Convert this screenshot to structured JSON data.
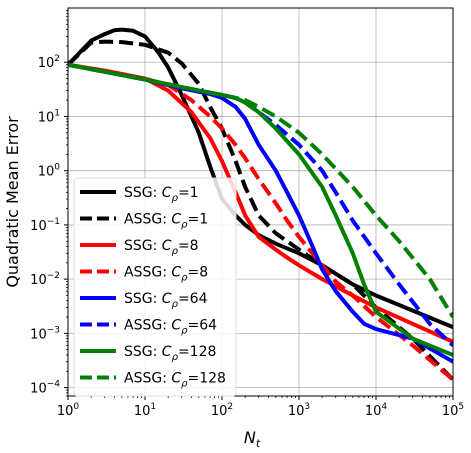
{
  "chart_data": {
    "type": "line",
    "xlabel_main": "N",
    "xlabel_sub": "t",
    "ylabel": "Quadratic Mean Error",
    "xscale": "log",
    "yscale": "log",
    "xlim": [
      1,
      100000
    ],
    "ylim": [
      7e-05,
      1000
    ],
    "grid": true,
    "legend_placement": "lower-left",
    "x_ticks": [
      {
        "base": "10",
        "exp": "0",
        "value": 1
      },
      {
        "base": "10",
        "exp": "1",
        "value": 10
      },
      {
        "base": "10",
        "exp": "2",
        "value": 100
      },
      {
        "base": "10",
        "exp": "3",
        "value": 1000
      },
      {
        "base": "10",
        "exp": "4",
        "value": 10000
      },
      {
        "base": "10",
        "exp": "5",
        "value": 100000
      }
    ],
    "y_ticks": [
      {
        "base": "10",
        "exp": "−4",
        "value": 0.0001
      },
      {
        "base": "10",
        "exp": "−3",
        "value": 0.001
      },
      {
        "base": "10",
        "exp": "−2",
        "value": 0.01
      },
      {
        "base": "10",
        "exp": "−1",
        "value": 0.1
      },
      {
        "base": "10",
        "exp": "0",
        "value": 1
      },
      {
        "base": "10",
        "exp": "1",
        "value": 10
      },
      {
        "base": "10",
        "exp": "2",
        "value": 100
      }
    ],
    "series": [
      {
        "legend_prefix": "SSG: ",
        "legend_param": "=1",
        "color": "#000000",
        "dash": false,
        "x": [
          1,
          2,
          3,
          4,
          5,
          7,
          10,
          15,
          20,
          30,
          50,
          70,
          100,
          150,
          200,
          300,
          500,
          1000,
          2000,
          5000,
          10000,
          100000
        ],
        "y": [
          90,
          250,
          330,
          390,
          400,
          380,
          300,
          150,
          80,
          25,
          5,
          1.2,
          0.3,
          0.15,
          0.1,
          0.065,
          0.045,
          0.03,
          0.018,
          0.008,
          0.005,
          0.0013
        ]
      },
      {
        "legend_prefix": "ASSG: ",
        "legend_param": "=1",
        "color": "#000000",
        "dash": true,
        "x": [
          1,
          2,
          3,
          5,
          10,
          20,
          30,
          50,
          70,
          100,
          150,
          200,
          300,
          500,
          1000,
          2000,
          5000,
          10000,
          30000,
          100000
        ],
        "y": [
          90,
          230,
          240,
          235,
          210,
          150,
          95,
          40,
          15,
          6,
          1.5,
          0.5,
          0.15,
          0.07,
          0.035,
          0.018,
          0.008,
          0.003,
          0.0008,
          0.00014
        ]
      },
      {
        "legend_prefix": "SSG: ",
        "legend_param": "=8",
        "color": "#ff0000",
        "dash": false,
        "x": [
          1,
          3,
          10,
          20,
          40,
          70,
          100,
          150,
          200,
          300,
          500,
          700,
          1000,
          2000,
          5000,
          10000,
          100000
        ],
        "y": [
          90,
          70,
          50,
          30,
          12,
          4,
          1.5,
          0.4,
          0.15,
          0.06,
          0.035,
          0.025,
          0.018,
          0.01,
          0.005,
          0.003,
          0.0007
        ]
      },
      {
        "legend_prefix": "ASSG: ",
        "legend_param": "=8",
        "color": "#ff0000",
        "dash": true,
        "x": [
          1,
          10,
          20,
          40,
          70,
          100,
          150,
          200,
          300,
          500,
          700,
          1000,
          2000,
          3000,
          5000,
          10000,
          30000,
          100000
        ],
        "y": [
          90,
          50,
          38,
          20,
          10,
          6,
          3,
          1.7,
          0.7,
          0.25,
          0.12,
          0.06,
          0.018,
          0.009,
          0.005,
          0.002,
          0.0006,
          0.00014
        ]
      },
      {
        "legend_prefix": "SSG: ",
        "legend_param": "=64",
        "color": "#0000ff",
        "dash": false,
        "x": [
          1,
          10,
          30,
          70,
          100,
          150,
          200,
          300,
          500,
          700,
          1000,
          1500,
          2000,
          3000,
          5000,
          7000,
          10000,
          30000,
          100000
        ],
        "y": [
          90,
          48,
          33,
          26,
          22,
          15,
          9,
          3,
          1,
          0.4,
          0.15,
          0.04,
          0.015,
          0.006,
          0.0025,
          0.0015,
          0.0012,
          0.0008,
          0.0003
        ]
      },
      {
        "legend_prefix": "ASSG: ",
        "legend_param": "=64",
        "color": "#0000ff",
        "dash": true,
        "x": [
          1,
          10,
          50,
          100,
          150,
          200,
          300,
          500,
          1000,
          2000,
          3000,
          5000,
          10000,
          20000,
          50000,
          100000
        ],
        "y": [
          90,
          48,
          30,
          25,
          22,
          18,
          12,
          7,
          3,
          1,
          0.4,
          0.12,
          0.03,
          0.008,
          0.0015,
          0.0006
        ]
      },
      {
        "legend_prefix": "SSG: ",
        "legend_param": "=128",
        "color": "#008000",
        "dash": false,
        "x": [
          1,
          10,
          50,
          100,
          150,
          200,
          300,
          500,
          1000,
          2000,
          3000,
          5000,
          7000,
          10000,
          30000,
          100000
        ],
        "y": [
          90,
          48,
          30,
          25,
          22,
          18,
          12,
          6,
          2,
          0.5,
          0.15,
          0.03,
          0.008,
          0.0025,
          0.0008,
          0.0004
        ]
      },
      {
        "legend_prefix": "ASSG: ",
        "legend_param": "=128",
        "color": "#008000",
        "dash": true,
        "x": [
          1,
          10,
          50,
          100,
          150,
          200,
          300,
          500,
          1000,
          2000,
          5000,
          10000,
          20000,
          50000,
          100000
        ],
        "y": [
          90,
          48,
          30,
          25,
          22,
          20,
          15,
          10,
          5,
          2,
          0.5,
          0.15,
          0.05,
          0.01,
          0.002
        ]
      }
    ]
  }
}
